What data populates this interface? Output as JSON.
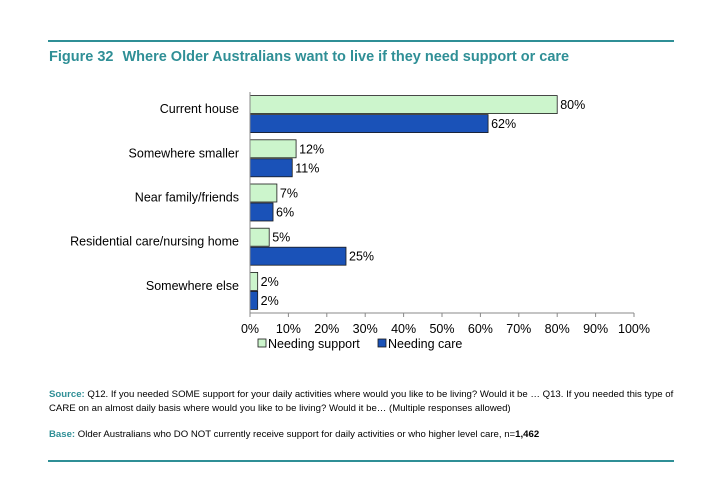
{
  "figure": {
    "number": "Figure 32",
    "title": "Where Older Australians want to live if they need support or care"
  },
  "chart_data": {
    "type": "bar",
    "orientation": "horizontal",
    "categories": [
      "Current house",
      "Somewhere smaller",
      "Near  family/friends",
      "Residential care/nursing home",
      "Somewhere else"
    ],
    "series": [
      {
        "name": "Needing support",
        "values": [
          80,
          12,
          7,
          5,
          2
        ],
        "labels": [
          "80%",
          "12%",
          "7%",
          "5%",
          "2%"
        ],
        "color": "#ccf5cc"
      },
      {
        "name": "Needing care",
        "values": [
          62,
          11,
          6,
          25,
          2
        ],
        "labels": [
          "62%",
          "11%",
          "6%",
          "25%",
          "2%"
        ],
        "color": "#1a52b8"
      }
    ],
    "xlim": [
      0,
      100
    ],
    "x_ticks": [
      0,
      10,
      20,
      30,
      40,
      50,
      60,
      70,
      80,
      90,
      100
    ],
    "x_tick_labels": [
      "0%",
      "10%",
      "20%",
      "30%",
      "40%",
      "50%",
      "60%",
      "70%",
      "80%",
      "90%",
      "100%"
    ],
    "grid": false,
    "legend_position": "bottom"
  },
  "notes": {
    "source_label": "Source:",
    "source_text": " Q12.  If you needed SOME support for your daily activities where would you like to be living?  Would it be … Q13.  If you needed this type of CARE on an almost daily basis where would you like to be living?  Would it be…  (Multiple responses allowed)",
    "base_label": "Base:",
    "base_text": " Older Australians who DO NOT currently receive support for daily activities  or who higher level care, n=",
    "base_n": "1,462"
  },
  "colors": {
    "accent": "#2f8f96",
    "support_bar": "#ccf5cc",
    "care_bar": "#1a52b8"
  }
}
